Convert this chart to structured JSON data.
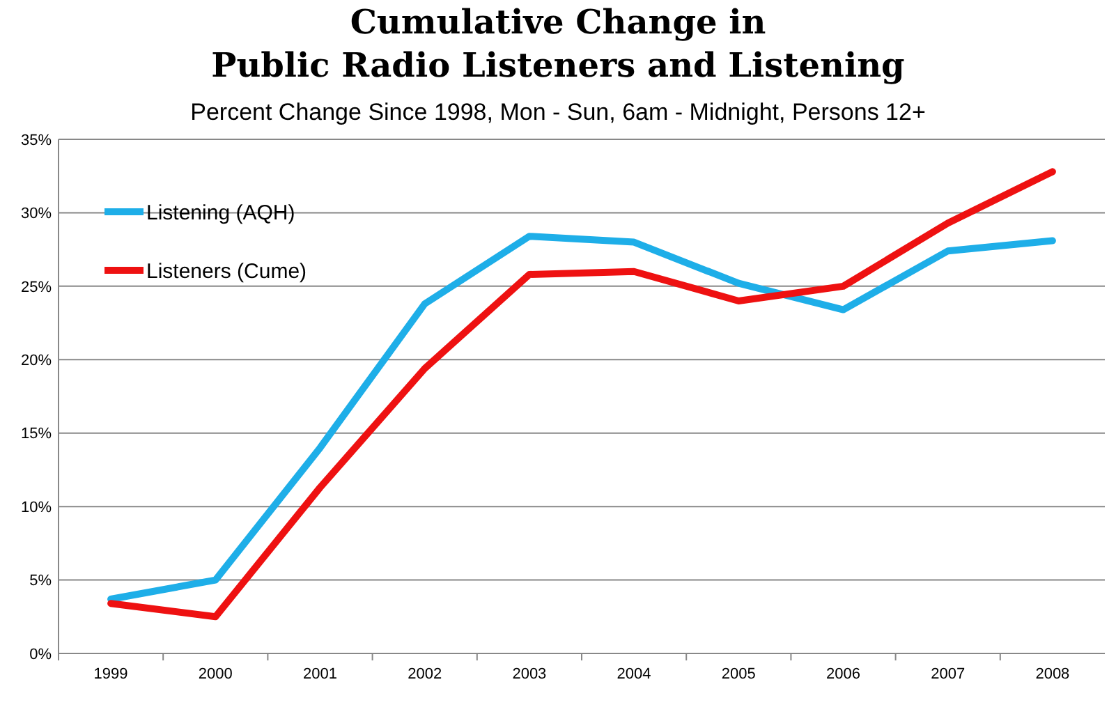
{
  "chart_data": {
    "type": "line",
    "title": "Cumulative Change in\nPublic Radio Listeners and Listening",
    "subtitle": "Percent Change Since 1998, Mon - Sun, 6am - Midnight, Persons 12+",
    "categories": [
      "1999",
      "2000",
      "2001",
      "2002",
      "2003",
      "2004",
      "2005",
      "2006",
      "2007",
      "2008"
    ],
    "series": [
      {
        "name": "Listening (AQH)",
        "color": "#1eaee8",
        "values": [
          3.7,
          5.0,
          14.0,
          23.8,
          28.4,
          28.0,
          25.2,
          23.4,
          27.4,
          28.1
        ]
      },
      {
        "name": "Listeners (Cume)",
        "color": "#ee1111",
        "values": [
          3.4,
          2.5,
          11.3,
          19.4,
          25.8,
          26.0,
          24.0,
          25.0,
          29.3,
          32.8
        ]
      }
    ],
    "ylim": [
      0,
      35
    ],
    "yticks": [
      {
        "value": 0,
        "label": "0%"
      },
      {
        "value": 5,
        "label": "5%"
      },
      {
        "value": 10,
        "label": "10%"
      },
      {
        "value": 15,
        "label": "15%"
      },
      {
        "value": 20,
        "label": "20%"
      },
      {
        "value": 25,
        "label": "25%"
      },
      {
        "value": 30,
        "label": "30%"
      },
      {
        "value": 35,
        "label": "35%"
      }
    ],
    "grid": "y",
    "legend": "top left",
    "line_style": "solid",
    "marker": "none"
  }
}
